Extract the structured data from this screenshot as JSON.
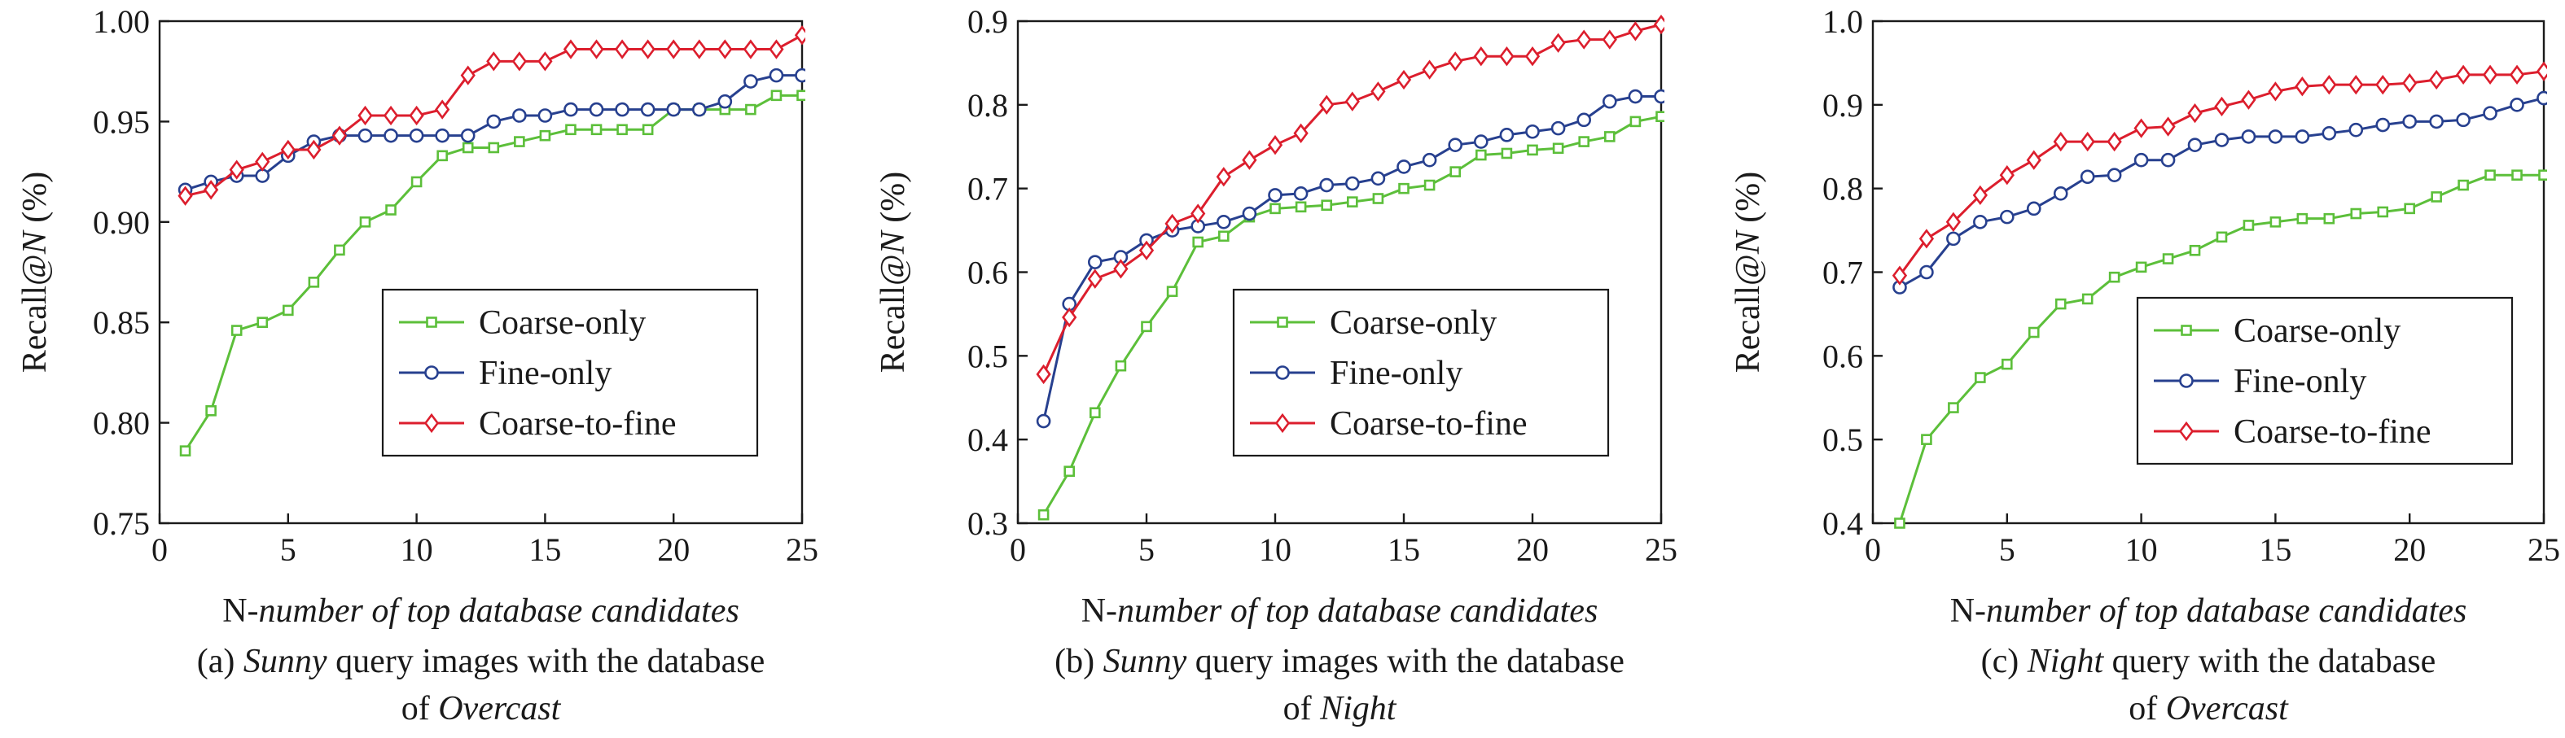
{
  "colors": {
    "series": [
      "#5cbf3a",
      "#27408f",
      "#dc1e2d"
    ],
    "axis": "#1a1a1a"
  },
  "chart_data": [
    {
      "type": "line",
      "panel_label": "(a)",
      "caption_line1": [
        "(a) ",
        "Sunny",
        " query images with the database"
      ],
      "caption_line2": [
        "of ",
        "Overcast",
        ""
      ],
      "xlabel": [
        "N",
        "-number of top database candidates"
      ],
      "ylabel": [
        "Recall@",
        "N",
        " (%)"
      ],
      "xlim": [
        0,
        25
      ],
      "ylim": [
        0.75,
        1.0
      ],
      "xticks": [
        0,
        5,
        10,
        15,
        20,
        25
      ],
      "xtick_labels": [
        "0",
        "5",
        "10",
        "15",
        "20",
        "25"
      ],
      "yticks": [
        0.75,
        0.8,
        0.85,
        0.9,
        0.95,
        1.0
      ],
      "ytick_labels": [
        "0.75",
        "0.80",
        "0.85",
        "0.90",
        "0.95",
        "1.00"
      ],
      "grid": false,
      "legend_position": "center-right",
      "x": [
        1,
        2,
        3,
        4,
        5,
        6,
        7,
        8,
        9,
        10,
        11,
        12,
        13,
        14,
        15,
        16,
        17,
        18,
        19,
        20,
        21,
        22,
        23,
        24,
        25
      ],
      "series": [
        {
          "name": "Coarse-only",
          "marker": "square",
          "values": [
            0.786,
            0.806,
            0.846,
            0.85,
            0.856,
            0.87,
            0.886,
            0.9,
            0.906,
            0.92,
            0.933,
            0.937,
            0.937,
            0.94,
            0.943,
            0.946,
            0.946,
            0.946,
            0.946,
            0.956,
            0.956,
            0.956,
            0.956,
            0.963,
            0.963
          ]
        },
        {
          "name": "Fine-only",
          "marker": "circle",
          "values": [
            0.916,
            0.92,
            0.923,
            0.923,
            0.933,
            0.94,
            0.943,
            0.943,
            0.943,
            0.943,
            0.943,
            0.943,
            0.95,
            0.953,
            0.953,
            0.956,
            0.956,
            0.956,
            0.956,
            0.956,
            0.956,
            0.96,
            0.97,
            0.973,
            0.973
          ]
        },
        {
          "name": "Coarse-to-fine",
          "marker": "diamond",
          "values": [
            0.913,
            0.916,
            0.926,
            0.93,
            0.936,
            0.936,
            0.943,
            0.953,
            0.953,
            0.953,
            0.956,
            0.973,
            0.98,
            0.98,
            0.98,
            0.986,
            0.986,
            0.986,
            0.986,
            0.986,
            0.986,
            0.986,
            0.986,
            0.986,
            0.993
          ]
        }
      ]
    },
    {
      "type": "line",
      "panel_label": "(b)",
      "caption_line1": [
        "(b) ",
        "Sunny",
        " query images with the database"
      ],
      "caption_line2": [
        "of ",
        "Night",
        ""
      ],
      "xlabel": [
        "N",
        "-number of top database candidates"
      ],
      "ylabel": [
        "Recall@",
        "N",
        " (%)"
      ],
      "xlim": [
        0,
        25
      ],
      "ylim": [
        0.3,
        0.9
      ],
      "xticks": [
        0,
        5,
        10,
        15,
        20,
        25
      ],
      "xtick_labels": [
        "0",
        "5",
        "10",
        "15",
        "20",
        "25"
      ],
      "yticks": [
        0.3,
        0.4,
        0.5,
        0.6,
        0.7,
        0.8,
        0.9
      ],
      "ytick_labels": [
        "0.3",
        "0.4",
        "0.5",
        "0.6",
        "0.7",
        "0.8",
        "0.9"
      ],
      "grid": false,
      "legend_position": "lower-right",
      "x": [
        1,
        2,
        3,
        4,
        5,
        6,
        7,
        8,
        9,
        10,
        11,
        12,
        13,
        14,
        15,
        16,
        17,
        18,
        19,
        20,
        21,
        22,
        23,
        24,
        25
      ],
      "series": [
        {
          "name": "Coarse-only",
          "marker": "square",
          "values": [
            0.31,
            0.362,
            0.432,
            0.488,
            0.535,
            0.577,
            0.636,
            0.643,
            0.666,
            0.676,
            0.678,
            0.68,
            0.684,
            0.688,
            0.7,
            0.704,
            0.72,
            0.74,
            0.742,
            0.746,
            0.748,
            0.756,
            0.762,
            0.78,
            0.786
          ]
        },
        {
          "name": "Fine-only",
          "marker": "circle",
          "values": [
            0.422,
            0.562,
            0.612,
            0.618,
            0.638,
            0.65,
            0.655,
            0.66,
            0.67,
            0.692,
            0.694,
            0.704,
            0.706,
            0.712,
            0.726,
            0.734,
            0.752,
            0.756,
            0.764,
            0.768,
            0.772,
            0.782,
            0.804,
            0.81,
            0.81
          ]
        },
        {
          "name": "Coarse-to-fine",
          "marker": "diamond",
          "values": [
            0.478,
            0.546,
            0.592,
            0.604,
            0.626,
            0.658,
            0.67,
            0.714,
            0.734,
            0.752,
            0.766,
            0.8,
            0.804,
            0.816,
            0.83,
            0.842,
            0.852,
            0.858,
            0.858,
            0.858,
            0.874,
            0.878,
            0.878,
            0.888,
            0.896
          ]
        }
      ]
    },
    {
      "type": "line",
      "panel_label": "(c)",
      "caption_line1": [
        "(c) ",
        "Night",
        " query with the database"
      ],
      "caption_line2": [
        "of ",
        "Overcast",
        ""
      ],
      "xlabel": [
        "N",
        "-number of top database candidates"
      ],
      "ylabel": [
        "Recall@",
        "N",
        " (%)"
      ],
      "xlim": [
        0,
        25
      ],
      "ylim": [
        0.4,
        1.0
      ],
      "xticks": [
        0,
        5,
        10,
        15,
        20,
        25
      ],
      "xtick_labels": [
        "0",
        "5",
        "10",
        "15",
        "20",
        "25"
      ],
      "yticks": [
        0.4,
        0.5,
        0.6,
        0.7,
        0.8,
        0.9,
        1.0
      ],
      "ytick_labels": [
        "0.4",
        "0.5",
        "0.6",
        "0.7",
        "0.8",
        "0.9",
        "1.0"
      ],
      "grid": false,
      "legend_position": "lower-right",
      "x": [
        1,
        2,
        3,
        4,
        5,
        6,
        7,
        8,
        9,
        10,
        11,
        12,
        13,
        14,
        15,
        16,
        17,
        18,
        19,
        20,
        21,
        22,
        23,
        24,
        25
      ],
      "series": [
        {
          "name": "Coarse-only",
          "marker": "square",
          "values": [
            0.4,
            0.5,
            0.538,
            0.574,
            0.59,
            0.628,
            0.662,
            0.668,
            0.694,
            0.706,
            0.716,
            0.726,
            0.742,
            0.756,
            0.76,
            0.764,
            0.764,
            0.77,
            0.772,
            0.776,
            0.79,
            0.804,
            0.816,
            0.816,
            0.816
          ]
        },
        {
          "name": "Fine-only",
          "marker": "circle",
          "values": [
            0.682,
            0.7,
            0.74,
            0.76,
            0.766,
            0.776,
            0.794,
            0.814,
            0.816,
            0.834,
            0.834,
            0.852,
            0.858,
            0.862,
            0.862,
            0.862,
            0.866,
            0.87,
            0.876,
            0.88,
            0.88,
            0.882,
            0.89,
            0.9,
            0.908
          ]
        },
        {
          "name": "Coarse-to-fine",
          "marker": "diamond",
          "values": [
            0.696,
            0.74,
            0.76,
            0.792,
            0.816,
            0.834,
            0.856,
            0.856,
            0.856,
            0.872,
            0.874,
            0.89,
            0.898,
            0.906,
            0.916,
            0.922,
            0.924,
            0.924,
            0.924,
            0.926,
            0.93,
            0.936,
            0.936,
            0.936,
            0.94
          ]
        }
      ]
    }
  ]
}
